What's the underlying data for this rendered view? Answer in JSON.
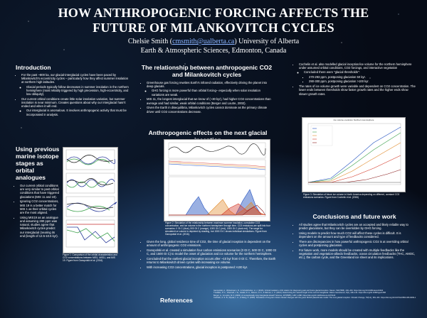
{
  "title": "HOW ANTHROPOGENIC FORCING AFFECTS THE FUTURE OF MILANKOVITCH CYCLES",
  "title_lines": [
    "HOW ANTHROPOGENIC FORCING AFFECTS THE",
    "FUTURE OF MILANKOVITCH CYCLES"
  ],
  "author": {
    "name": "Chelsie Smith",
    "email": "cmsmith@ualberta.ca",
    "affiliation_tail": "University of Alberta",
    "department": "Earth & Atmospheric Sciences, Edmonton, Canada"
  },
  "intro": {
    "heading": "Introduction",
    "bullets": [
      "For the past ~800 ka, our glacial-interglacial cycles have been paced by Milankovitch's eccentricity cycles – particularly how they affect summer insolation at northern high latitudes.",
      "Our current orbital conditions create little solar insolation variation, but summer insolation is near minimum. Creates questions about why our interglacial hasn't ended and when it will end."
    ],
    "sub1": [
      "Glacial periods typically follow decreases in summer insolation in the northern hemisphere (most reliably triggered by high precession, high-eccentricity, and low obliquity)."
    ],
    "sub2": [
      "Our interglacial is anomalous. It involves anthropogenic activity that must be incorporated in analysis."
    ]
  },
  "isotope": {
    "heading": "Using previous marine isotope stages as orbital analogues",
    "bullets": [
      "Our current orbital conditions are very similar to past orbital conditions that have triggered glaciations (MIS 11 and 19).",
      "Ignoring CO2 concentrations, MIS 19 is a better match for MIS 1 as their orbital cycles are the most aligned.",
      "Using MIS19 as an analogue and assuming 280 ppm was natural, studies agree that Milankovitch cycles predict our interglacial (nearing its end (length of 12.5-10.5 kyr)."
    ],
    "figure_caption": "Figure 1: Comparison of the orbital characteristics and CO2 concentrations between MIS1, MIS11, and MIS 19. Figure from Ganopolski et al. (2016)"
  },
  "relationship": {
    "heading": "The relationship between anthropogenic CO2 and Milankovitch cycles",
    "bullets": [
      "Greenhouse gas forcing rewrites Earth's infrared radiation, effectively driving the planet into deep glacials.",
      "MIS 11, the longest interglacial that we know of (~30 kyr), had higher CO2 concentrations than average and had similar, weak orbital conditions (Berger and Loutre, 2002).",
      "Given the Earth in disequilibria, Milankovitch cycles cannot dominate as the primary climate driver until CO2 concentrations decrease."
    ],
    "sub": [
      "GHG forcing is more powerful than orbital forcing– especially when solar insolation variations are weak."
    ]
  },
  "inception": {
    "heading": "Anthropogenic effects on the next glacial inception",
    "figure_caption": "Figure 2: Simulation of the relationship between maximum summer insolation, cumulative CO2 concentration, and ice volume in the northern hemisphere through time. CO2 emissions are split into four scenarios: 0 Gt C (blue), 500 Gt C (orange), 1000 Gt C (red), 1500 Gt C (dark red). The range for simulated ice volume is depicted by shading, but 1500 Gt C shows individual simulations. Figure from Ganopolski et al. (2016).",
    "bullets": [
      "Given the long, global residence time of CO2, the time of glacial inception is dependent on the amount of anthropogenic CO2 emissions.",
      "Ganopolski et al. created a simulation four carbon emissions scenarios (0 Gt C, 500 Gt C, 1000 Gt C, and 1500 Gt C) to model the onset of glaciation and ice volume for the northern hemisphere.",
      "Concluded that the earliest glacial inception occurs after ~10 kyr from 0 Gt C. Therefore, the Earth returns to Milankovitch driven cycles with increasing ice volume.",
      "With increasing CO2 concentrations, glacial inception is postponed >100 kyr."
    ]
  },
  "right_top": {
    "bullets": [
      "Cochelin et al. also modelled glacial inception/ice volume for the northern hemisphere under assumed orbital conditions, CO2 forcings, and interactive vegetation",
      "The rates of ice volume growth were variable and dependent on CO2 concentration. The lower ends between thresholds show faster growth rates and the higher ends show slower growth rates."
    ],
    "concluded_label": "Concluded there were \"glacial thresholds\":",
    "thresholds": [
      "270-293 ppm, postponing glaciation 50 kyr.",
      "290-300 ppm, postponing glaciation >100 kyr."
    ],
    "figure_title": "Ice volume evolution Northern Hemisphere",
    "figure_caption": "Figure 3: Simulation of future ice volume in North America depending on different, constant CO2 emissions scenarios. Figure from Cochelin et al. (2006)"
  },
  "conclusions": {
    "heading": "Conclusions and future work",
    "bullets": [
      "All studies agree that Milankovitch cycles are an accepted and likely reliable way to predict glaciations, but they can be overridden by GHG forcing.",
      "Using models to predict how much CO2 will affect these cycles is difficult. It is dependent on the amount and type of feedbacks considered.",
      "There are discrepancies in how powerful anthropogenic CO2 is at overriding orbital cycles and postponing glaciation.",
      "For future work, more models should be created with multiple feedbacks like the vegetation and vegetation-albedo feedbacks, ocean circulation feedbacks (THC, AMOC, etc.), the carbon cycle, and the Greenland ice sheet and its implications."
    ]
  },
  "references": {
    "heading": "References",
    "items": [
      "Ganopolski, A., Winkelmann, R., & Schellnhuber, H. J. (2016). Critical insolation–CO2 relation for diagnosing past and future glacial inception. Nature, 529(7585), 200–203. https://doi.org/10.1038/nature16494",
      "Tzedakis, P. C., Channell, J. E., Hodell, D. A., Kleiven, H. F., & Skinner, L. C. (2012). Determining the natural length of the current interglacial. Nature Geoscience, 5(2), 138–141. https://doi.org/10.1038/ngeo1358",
      "Berger, A., & Loutre, M. F. (2002). An exceptionally long interglacial ahead? Science, 297(5585), 1287–1288. https://doi.org/10.1126/science.1076120",
      "Cochelin, A. S. B., Mysak, L. A., & Wang, Z. (2006). Simulation of long-term future climate changes with the green McGill paleoclimate model: The next glacial inception. Climatic Change, 79(3-4), 381–401. https://doi.org/10.1007/s10584-006-9099-1"
    ]
  },
  "colors": {
    "panel_text": "#ffffff",
    "email": "#8ab4ff",
    "scenario_0": "#1f4fbf",
    "scenario_500": "#e08a2a",
    "scenario_1000": "#d43a2a",
    "scenario_1500": "#8a1c1c"
  },
  "figure_scenarios": [
    "0 Gt C",
    "500 Gt C",
    "1000 Gt C",
    "1500 Gt C"
  ]
}
